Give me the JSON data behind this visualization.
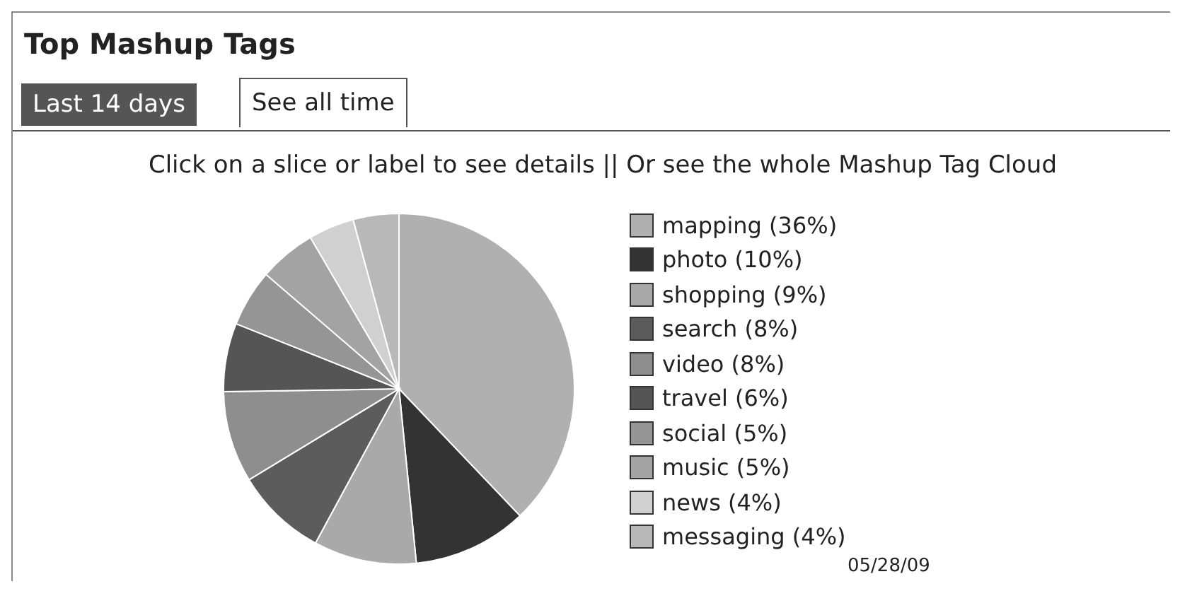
{
  "chart_data": {
    "type": "pie",
    "title": "Top Mashup Tags",
    "subtitle": "Click on a slice or label to see details || Or see the whole Mashup Tag Cloud",
    "annotations": [
      "Last 14 days",
      "See all time",
      "05/28/09"
    ],
    "categories": [
      "mapping",
      "photo",
      "shopping",
      "search",
      "video",
      "travel",
      "social",
      "music",
      "news",
      "messaging"
    ],
    "values": [
      36,
      10,
      9,
      8,
      8,
      6,
      5,
      5,
      4,
      4
    ],
    "value_labels": [
      "(36%)",
      "(10%)",
      "(9%)",
      "(8%)",
      "(8%)",
      "(6%)",
      "(5%)",
      "(5%)",
      "(4%)",
      "(4%)"
    ],
    "colors": [
      "#b0b0b0",
      "#333333",
      "#a9a9a9",
      "#5c5c5c",
      "#8e8e8e",
      "#555555",
      "#959595",
      "#a3a3a3",
      "#d0d0d0",
      "#b8b8b8"
    ],
    "legend": "right"
  }
}
